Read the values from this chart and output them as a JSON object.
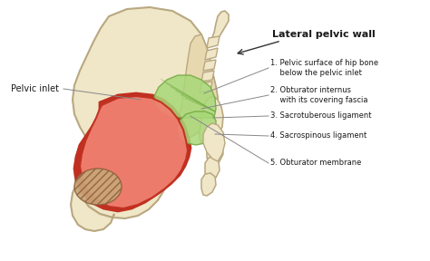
{
  "background_color": "#ffffff",
  "bone_color": "#f0e6c8",
  "bone_edge_color": "#b8a880",
  "bone_inner_color": "#e8d8b0",
  "red_fill": "#e05545",
  "red_edge": "#c03020",
  "red_light": "#f08070",
  "green_fill": "#a8d878",
  "green_edge": "#70a840",
  "hatch_color": "#c8a878",
  "label_title": "Lateral pelvic wall",
  "label_left": "Pelvic inlet",
  "labels": [
    "1. Pelvic surface of hip bone\n    below the pelvic inlet",
    "2. Obturator internus\n    with its covering fascia",
    "3. Sacrotuberous ligament",
    "4. Sacrospinous ligament",
    "5. Obturator membrane"
  ]
}
